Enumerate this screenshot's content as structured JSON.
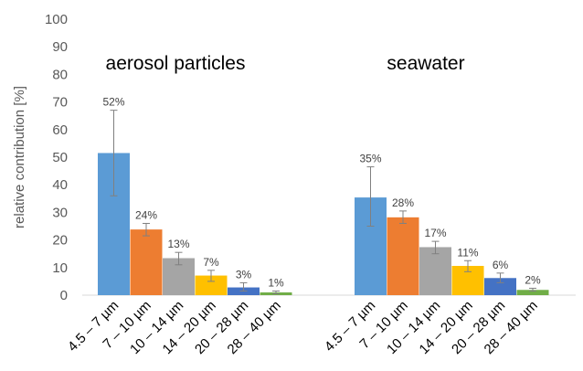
{
  "chart_data": {
    "type": "bar",
    "ylabel": "relative contribution [%]",
    "ylim": [
      0,
      100
    ],
    "yticks": [
      0,
      10,
      20,
      30,
      40,
      50,
      60,
      70,
      80,
      90,
      100
    ],
    "grid": false,
    "categories": [
      "4.5 – 7 µm",
      "7 – 10 µm",
      "10 – 14 µm",
      "14 – 20 µm",
      "20 – 28 µm",
      "28 – 40 µm"
    ],
    "colors": [
      "#5b9bd5",
      "#ed7d31",
      "#a5a5a5",
      "#ffc000",
      "#4472c4",
      "#70ad47"
    ],
    "error_bar_color": "#808080",
    "groups": [
      {
        "title": "aerosol particles",
        "values": [
          51.5,
          23.8,
          13.4,
          7.1,
          2.8,
          1.0
        ],
        "labels": [
          "52%",
          "24%",
          "13%",
          "7%",
          "3%",
          "1%"
        ],
        "err_low": [
          36,
          21.5,
          11,
          5,
          1.5,
          0.5
        ],
        "err_high": [
          67,
          26,
          15.5,
          9,
          4.5,
          1.5
        ]
      },
      {
        "title": "seawater",
        "values": [
          35.4,
          28.2,
          17.4,
          10.6,
          6.2,
          1.9
        ],
        "labels": [
          "35%",
          "28%",
          "17%",
          "11%",
          "6%",
          "2%"
        ],
        "err_low": [
          25,
          26,
          15,
          8.5,
          4.5,
          1.5
        ],
        "err_high": [
          46.5,
          30.5,
          19.5,
          12.5,
          8,
          2.5
        ]
      }
    ]
  }
}
